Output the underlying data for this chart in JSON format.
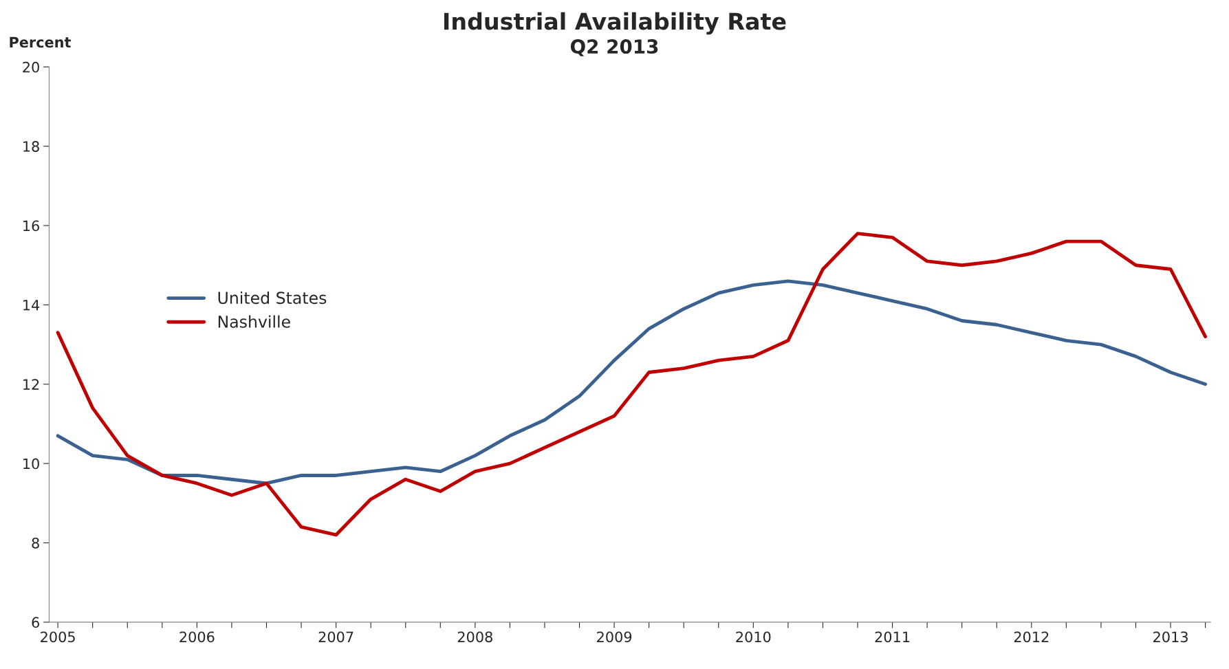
{
  "chart_data": {
    "type": "line",
    "title": "Industrial Availability Rate",
    "subtitle": "Q2 2013",
    "ylabel": "Percent",
    "categories": [
      "2005",
      null,
      null,
      null,
      "2006",
      null,
      null,
      null,
      "2007",
      null,
      null,
      null,
      "2008",
      null,
      null,
      null,
      "2009",
      null,
      null,
      null,
      "2010",
      null,
      null,
      null,
      "2011",
      null,
      null,
      null,
      "2012",
      null,
      null,
      null,
      "2013",
      null
    ],
    "series": [
      {
        "name": "United States",
        "color": "#3a6190",
        "values": [
          10.7,
          10.2,
          10.1,
          9.7,
          9.7,
          9.6,
          9.5,
          9.7,
          9.7,
          9.8,
          9.9,
          9.8,
          10.2,
          10.7,
          11.1,
          11.7,
          12.6,
          13.4,
          13.9,
          14.3,
          14.5,
          14.6,
          14.5,
          14.3,
          14.1,
          13.9,
          13.6,
          13.5,
          13.3,
          13.1,
          13.0,
          12.7,
          12.3,
          12.0
        ]
      },
      {
        "name": "Nashville",
        "color": "#c00000",
        "values": [
          13.3,
          11.4,
          10.2,
          9.7,
          9.5,
          9.2,
          9.5,
          8.4,
          8.2,
          9.1,
          9.6,
          9.3,
          9.8,
          10.0,
          10.4,
          10.8,
          11.2,
          12.3,
          12.4,
          12.6,
          12.7,
          13.1,
          14.9,
          15.8,
          15.7,
          15.1,
          15.0,
          15.1,
          15.3,
          15.6,
          15.6,
          15.0,
          14.9,
          13.2
        ]
      }
    ],
    "ylim": [
      6,
      20
    ],
    "yticks": [
      6,
      8,
      10,
      12,
      14,
      16,
      18,
      20
    ],
    "grid": false,
    "legend": "center left",
    "marker": "none",
    "line_style": "solid"
  }
}
